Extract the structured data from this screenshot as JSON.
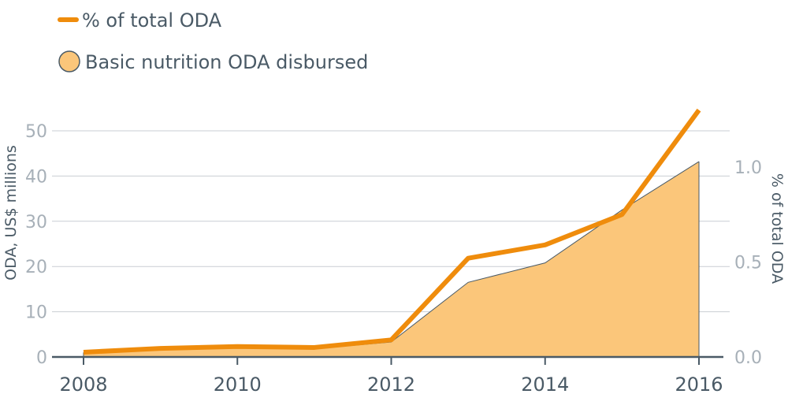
{
  "chart_data": {
    "type": "line+area",
    "title": "",
    "legend": {
      "placement": "top-left",
      "entries": [
        {
          "label": "% of total ODA",
          "marker": "line"
        },
        {
          "label": "Basic nutrition ODA disbursed",
          "marker": "circle"
        }
      ]
    },
    "x": {
      "values": [
        2008,
        2009,
        2010,
        2011,
        2012,
        2013,
        2014,
        2015,
        2016
      ],
      "ticks": [
        "2008",
        "2010",
        "2012",
        "2014",
        "2016"
      ],
      "range": [
        2008,
        2016
      ]
    },
    "y_left": {
      "label": "ODA, US$ millions",
      "ticks": [
        "0",
        "10",
        "20",
        "30",
        "40",
        "50"
      ],
      "range": [
        0,
        55
      ]
    },
    "y_right": {
      "label": "% of total ODA",
      "ticks": [
        "0.0",
        "0.5",
        "1.0"
      ],
      "range": [
        0,
        1.26
      ]
    },
    "grid": true,
    "series": [
      {
        "name": "Basic nutrition ODA disbursed",
        "type": "area",
        "axis": "left",
        "values": [
          1.0,
          1.7,
          2.1,
          1.8,
          3.3,
          16.5,
          20.8,
          32.5,
          43.2
        ]
      },
      {
        "name": "% of total ODA",
        "type": "line",
        "axis": "right",
        "values": [
          0.025,
          0.045,
          0.055,
          0.05,
          0.09,
          0.52,
          0.59,
          0.75,
          1.3
        ]
      }
    ],
    "colors": {
      "line": "#ef8c0c",
      "area_fill": "#fbc67a",
      "area_stroke": "#4a5a66",
      "text_dark": "#4a5a66",
      "text_light": "#a7b0b8",
      "grid": "#c9ced3"
    }
  }
}
